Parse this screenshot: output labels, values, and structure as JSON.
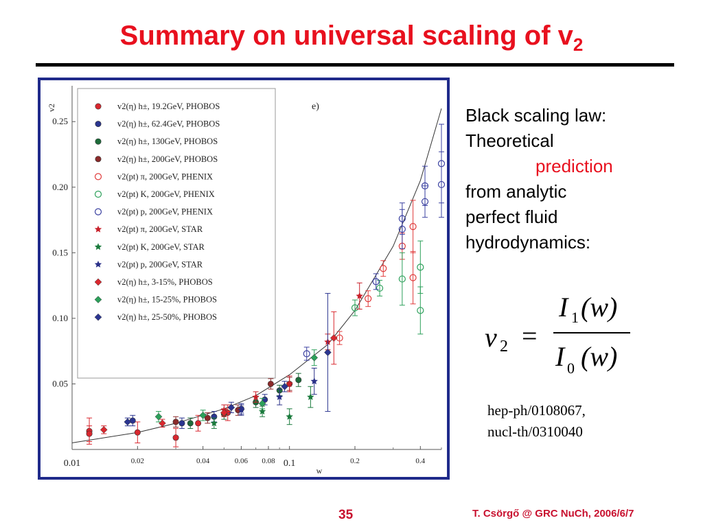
{
  "slide": {
    "title_main": "Summary on universal scaling of v",
    "title_sub": "2",
    "side_lines": [
      "Black scaling law:",
      "Theoretical",
      "prediction",
      "from analytic",
      "perfect fluid",
      "hydrodynamics:"
    ],
    "formula": {
      "lhs": "v",
      "lhs_sub": "2",
      "eq": "=",
      "num": "I",
      "num_sub": "1",
      "arg": "(w)",
      "den": "I",
      "den_sub": "0"
    },
    "refs": [
      "hep-ph/0108067,",
      "nucl-th/0310040"
    ],
    "page_number": "35",
    "footer": "T. Csörgő @ GRC NuCh, 2006/6/7",
    "accent_color": "#e8101e",
    "frame_color": "#1f2a8a"
  },
  "chart_data": {
    "type": "scatter",
    "panel_label": "e)",
    "xlabel": "w",
    "ylabel": "v2",
    "x_scale": "log",
    "xlim": [
      0.01,
      0.5
    ],
    "ylim": [
      0.0,
      0.27
    ],
    "x_ticks": [
      {
        "v": 0.01,
        "label": "0.01"
      },
      {
        "v": 0.02,
        "label": "0.02"
      },
      {
        "v": 0.04,
        "label": "0.04"
      },
      {
        "v": 0.06,
        "label": "0.06"
      },
      {
        "v": 0.08,
        "label": "0.08"
      },
      {
        "v": 0.1,
        "label": "0.1"
      },
      {
        "v": 0.2,
        "label": "0.2"
      },
      {
        "v": 0.4,
        "label": "0.4"
      }
    ],
    "y_ticks": [
      {
        "v": 0.05,
        "label": "0.05"
      },
      {
        "v": 0.1,
        "label": "0.10"
      },
      {
        "v": 0.15,
        "label": "0.15"
      },
      {
        "v": 0.2,
        "label": "0.20"
      },
      {
        "v": 0.25,
        "label": "0.25"
      }
    ],
    "legend_position": "top-left",
    "legend": [
      {
        "label": "v2(η) h±, 19.2GeV, PHOBOS",
        "marker": "circle-filled",
        "color": "#d9272e"
      },
      {
        "label": "v2(η) h±, 62.4GeV, PHOBOS",
        "marker": "circle-filled",
        "color": "#2b3590"
      },
      {
        "label": "v2(η) h±, 130GeV, PHOBOS",
        "marker": "circle-filled",
        "color": "#1d6b3a"
      },
      {
        "label": "v2(η) h±, 200GeV, PHOBOS",
        "marker": "circle-filled",
        "color": "#8b2a2a"
      },
      {
        "label": "v2(pt) π, 200GeV, PHENIX",
        "marker": "circle-open",
        "color": "#e03a3a"
      },
      {
        "label": "v2(pt) K, 200GeV, PHENIX",
        "marker": "circle-open",
        "color": "#2ca05a"
      },
      {
        "label": "v2(pt) p, 200GeV, PHENIX",
        "marker": "circle-open",
        "color": "#3a40a0"
      },
      {
        "label": "v2(pt) π, 200GeV, STAR",
        "marker": "star",
        "color": "#c8202a"
      },
      {
        "label": "v2(pt) K, 200GeV, STAR",
        "marker": "star",
        "color": "#1a7a3c"
      },
      {
        "label": "v2(pt) p, 200GeV, STAR",
        "marker": "star",
        "color": "#2a3088"
      },
      {
        "label": "v2(η) h±, 3-15%, PHOBOS",
        "marker": "diamond",
        "color": "#d9272e"
      },
      {
        "label": "v2(η) h±, 15-25%, PHOBOS",
        "marker": "diamond",
        "color": "#2ca05a"
      },
      {
        "label": "v2(η) h±, 25-50%, PHOBOS",
        "marker": "diamond",
        "color": "#2b3590"
      }
    ],
    "curve": {
      "name": "",
      "x": [
        0.01,
        0.02,
        0.03,
        0.05,
        0.07,
        0.1,
        0.15,
        0.2,
        0.3,
        0.4,
        0.5
      ],
      "y": [
        0.005,
        0.013,
        0.02,
        0.031,
        0.041,
        0.057,
        0.08,
        0.106,
        0.155,
        0.205,
        0.26
      ]
    },
    "points": [
      {
        "s": 0,
        "x": 0.012,
        "y": 0.014,
        "e": 0.01
      },
      {
        "s": 0,
        "x": 0.012,
        "y": 0.012,
        "e": 0.006
      },
      {
        "s": 0,
        "x": 0.02,
        "y": 0.013,
        "e": 0.008
      },
      {
        "s": 0,
        "x": 0.03,
        "y": 0.009,
        "e": 0.007
      },
      {
        "s": 0,
        "x": 0.038,
        "y": 0.02,
        "e": 0.006
      },
      {
        "s": 0,
        "x": 0.052,
        "y": 0.028,
        "e": 0.006
      },
      {
        "s": 1,
        "x": 0.019,
        "y": 0.022,
        "e": 0.004
      },
      {
        "s": 1,
        "x": 0.032,
        "y": 0.02,
        "e": 0.004
      },
      {
        "s": 1,
        "x": 0.045,
        "y": 0.025,
        "e": 0.004
      },
      {
        "s": 1,
        "x": 0.06,
        "y": 0.031,
        "e": 0.004
      },
      {
        "s": 1,
        "x": 0.077,
        "y": 0.038,
        "e": 0.004
      },
      {
        "s": 2,
        "x": 0.035,
        "y": 0.02,
        "e": 0.004
      },
      {
        "s": 2,
        "x": 0.05,
        "y": 0.027,
        "e": 0.004
      },
      {
        "s": 2,
        "x": 0.07,
        "y": 0.036,
        "e": 0.004
      },
      {
        "s": 2,
        "x": 0.09,
        "y": 0.045,
        "e": 0.004
      },
      {
        "s": 2,
        "x": 0.11,
        "y": 0.053,
        "e": 0.005
      },
      {
        "s": 3,
        "x": 0.03,
        "y": 0.021,
        "e": 0.004
      },
      {
        "s": 3,
        "x": 0.042,
        "y": 0.024,
        "e": 0.004
      },
      {
        "s": 3,
        "x": 0.058,
        "y": 0.03,
        "e": 0.004
      },
      {
        "s": 3,
        "x": 0.082,
        "y": 0.05,
        "e": 0.004
      },
      {
        "s": 3,
        "x": 0.1,
        "y": 0.05,
        "e": 0.005
      },
      {
        "s": 4,
        "x": 0.17,
        "y": 0.085,
        "e": 0.005
      },
      {
        "s": 4,
        "x": 0.23,
        "y": 0.115,
        "e": 0.006
      },
      {
        "s": 4,
        "x": 0.27,
        "y": 0.138,
        "e": 0.006
      },
      {
        "s": 4,
        "x": 0.33,
        "y": 0.155,
        "e": 0.01
      },
      {
        "s": 4,
        "x": 0.37,
        "y": 0.17,
        "e": 0.02
      },
      {
        "s": 4,
        "x": 0.37,
        "y": 0.131,
        "e": 0.02
      },
      {
        "s": 5,
        "x": 0.2,
        "y": 0.108,
        "e": 0.006
      },
      {
        "s": 5,
        "x": 0.26,
        "y": 0.123,
        "e": 0.006
      },
      {
        "s": 5,
        "x": 0.33,
        "y": 0.13,
        "e": 0.02
      },
      {
        "s": 5,
        "x": 0.4,
        "y": 0.139,
        "e": 0.02
      },
      {
        "s": 5,
        "x": 0.4,
        "y": 0.106,
        "e": 0.018
      },
      {
        "s": 6,
        "x": 0.12,
        "y": 0.073,
        "e": 0.005
      },
      {
        "s": 6,
        "x": 0.25,
        "y": 0.128,
        "e": 0.006
      },
      {
        "s": 6,
        "x": 0.33,
        "y": 0.168,
        "e": 0.015
      },
      {
        "s": 6,
        "x": 0.33,
        "y": 0.176,
        "e": 0.012
      },
      {
        "s": 6,
        "x": 0.42,
        "y": 0.201,
        "e": 0.015
      },
      {
        "s": 6,
        "x": 0.42,
        "y": 0.189,
        "e": 0.012
      },
      {
        "s": 6,
        "x": 0.5,
        "y": 0.218,
        "e": 0.03
      },
      {
        "s": 6,
        "x": 0.5,
        "y": 0.202,
        "e": 0.025
      },
      {
        "s": 7,
        "x": 0.05,
        "y": 0.03,
        "e": 0.004
      },
      {
        "s": 7,
        "x": 0.07,
        "y": 0.04,
        "e": 0.004
      },
      {
        "s": 7,
        "x": 0.1,
        "y": 0.05,
        "e": 0.006
      },
      {
        "s": 7,
        "x": 0.15,
        "y": 0.082,
        "e": 0.006
      },
      {
        "s": 7,
        "x": 0.21,
        "y": 0.117,
        "e": 0.01
      },
      {
        "s": 8,
        "x": 0.045,
        "y": 0.02,
        "e": 0.004
      },
      {
        "s": 8,
        "x": 0.075,
        "y": 0.029,
        "e": 0.004
      },
      {
        "s": 8,
        "x": 0.1,
        "y": 0.025,
        "e": 0.006
      },
      {
        "s": 8,
        "x": 0.125,
        "y": 0.04,
        "e": 0.008
      },
      {
        "s": 9,
        "x": 0.06,
        "y": 0.03,
        "e": 0.004
      },
      {
        "s": 9,
        "x": 0.09,
        "y": 0.04,
        "e": 0.006
      },
      {
        "s": 9,
        "x": 0.13,
        "y": 0.052,
        "e": 0.01
      },
      {
        "s": 10,
        "x": 0.014,
        "y": 0.015,
        "e": 0.003
      },
      {
        "s": 10,
        "x": 0.026,
        "y": 0.02,
        "e": 0.003
      },
      {
        "s": 10,
        "x": 0.05,
        "y": 0.028,
        "e": 0.003
      },
      {
        "s": 10,
        "x": 0.16,
        "y": 0.085,
        "e": 0.02
      },
      {
        "s": 11,
        "x": 0.025,
        "y": 0.025,
        "e": 0.004
      },
      {
        "s": 11,
        "x": 0.04,
        "y": 0.026,
        "e": 0.004
      },
      {
        "s": 11,
        "x": 0.075,
        "y": 0.035,
        "e": 0.004
      },
      {
        "s": 11,
        "x": 0.13,
        "y": 0.07,
        "e": 0.006
      },
      {
        "s": 12,
        "x": 0.018,
        "y": 0.021,
        "e": 0.003
      },
      {
        "s": 12,
        "x": 0.054,
        "y": 0.032,
        "e": 0.004
      },
      {
        "s": 12,
        "x": 0.095,
        "y": 0.048,
        "e": 0.004
      },
      {
        "s": 12,
        "x": 0.15,
        "y": 0.074,
        "e": 0.045
      }
    ]
  }
}
